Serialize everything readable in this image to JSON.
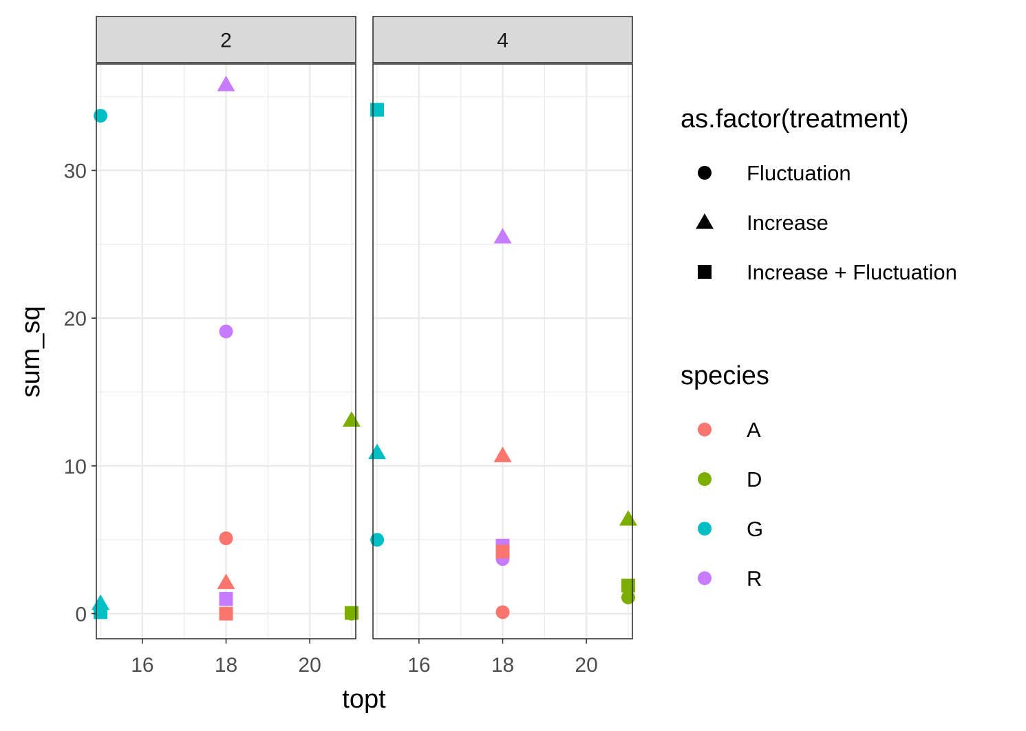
{
  "chart_data": {
    "type": "scatter",
    "xlabel": "topt",
    "ylabel": "sum_sq",
    "xlim": [
      14.9,
      21.1
    ],
    "ylim": [
      -1.7,
      37.2
    ],
    "x_ticks": [
      16,
      18,
      20
    ],
    "y_ticks": [
      0,
      10,
      20,
      30
    ],
    "grid": true,
    "facets": [
      "2",
      "4"
    ],
    "legend_placement": "right",
    "shape_legend": {
      "title": "as.factor(treatment)",
      "entries": [
        {
          "label": "Fluctuation",
          "shape": "circle"
        },
        {
          "label": "Increase",
          "shape": "triangle"
        },
        {
          "label": "Increase + Fluctuation",
          "shape": "square"
        }
      ]
    },
    "color_legend": {
      "title": "species",
      "entries": [
        {
          "label": "A",
          "color": "#F8766D"
        },
        {
          "label": "D",
          "color": "#7CAE00"
        },
        {
          "label": "G",
          "color": "#00BFC4"
        },
        {
          "label": "R",
          "color": "#C77CFF"
        }
      ]
    },
    "points": [
      {
        "facet": "2",
        "x": 15,
        "y": 33.7,
        "species": "G",
        "treatment": "Fluctuation"
      },
      {
        "facet": "2",
        "x": 15,
        "y": 0.7,
        "species": "G",
        "treatment": "Increase"
      },
      {
        "facet": "2",
        "x": 15,
        "y": 0.1,
        "species": "G",
        "treatment": "Increase + Fluctuation"
      },
      {
        "facet": "2",
        "x": 18,
        "y": 35.8,
        "species": "R",
        "treatment": "Increase"
      },
      {
        "facet": "2",
        "x": 18,
        "y": 19.1,
        "species": "R",
        "treatment": "Fluctuation"
      },
      {
        "facet": "2",
        "x": 18,
        "y": 1.0,
        "species": "R",
        "treatment": "Increase + Fluctuation"
      },
      {
        "facet": "2",
        "x": 18,
        "y": 5.1,
        "species": "A",
        "treatment": "Fluctuation"
      },
      {
        "facet": "2",
        "x": 18,
        "y": 2.1,
        "species": "A",
        "treatment": "Increase"
      },
      {
        "facet": "2",
        "x": 18,
        "y": 0.0,
        "species": "A",
        "treatment": "Increase + Fluctuation"
      },
      {
        "facet": "2",
        "x": 21,
        "y": 13.1,
        "species": "D",
        "treatment": "Increase"
      },
      {
        "facet": "2",
        "x": 21,
        "y": 0.0,
        "species": "D",
        "treatment": "Fluctuation"
      },
      {
        "facet": "2",
        "x": 21,
        "y": 0.05,
        "species": "D",
        "treatment": "Increase + Fluctuation"
      },
      {
        "facet": "4",
        "x": 15,
        "y": 34.1,
        "species": "G",
        "treatment": "Increase + Fluctuation"
      },
      {
        "facet": "4",
        "x": 15,
        "y": 10.9,
        "species": "G",
        "treatment": "Increase"
      },
      {
        "facet": "4",
        "x": 15,
        "y": 5.0,
        "species": "G",
        "treatment": "Fluctuation"
      },
      {
        "facet": "4",
        "x": 18,
        "y": 25.5,
        "species": "R",
        "treatment": "Increase"
      },
      {
        "facet": "4",
        "x": 18,
        "y": 4.6,
        "species": "R",
        "treatment": "Increase + Fluctuation"
      },
      {
        "facet": "4",
        "x": 18,
        "y": 3.7,
        "species": "R",
        "treatment": "Fluctuation"
      },
      {
        "facet": "4",
        "x": 18,
        "y": 10.7,
        "species": "A",
        "treatment": "Increase"
      },
      {
        "facet": "4",
        "x": 18,
        "y": 4.2,
        "species": "A",
        "treatment": "Increase + Fluctuation"
      },
      {
        "facet": "4",
        "x": 18,
        "y": 0.1,
        "species": "A",
        "treatment": "Fluctuation"
      },
      {
        "facet": "4",
        "x": 21,
        "y": 6.4,
        "species": "D",
        "treatment": "Increase"
      },
      {
        "facet": "4",
        "x": 21,
        "y": 1.9,
        "species": "D",
        "treatment": "Increase + Fluctuation"
      },
      {
        "facet": "4",
        "x": 21,
        "y": 1.1,
        "species": "D",
        "treatment": "Fluctuation"
      }
    ]
  }
}
